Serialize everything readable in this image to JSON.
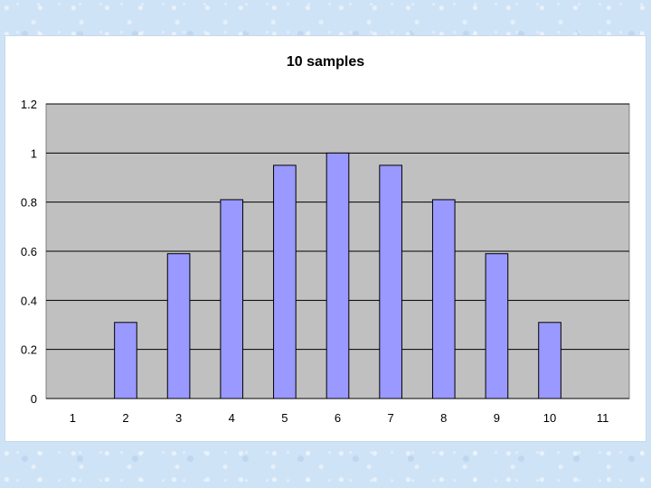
{
  "chart_data": {
    "type": "bar",
    "title": "10 samples",
    "xlabel": "",
    "ylabel": "",
    "categories": [
      "1",
      "2",
      "3",
      "4",
      "5",
      "6",
      "7",
      "8",
      "9",
      "10",
      "11"
    ],
    "values": [
      0,
      0.31,
      0.59,
      0.81,
      0.95,
      1.0,
      0.95,
      0.81,
      0.59,
      0.31,
      0
    ],
    "ylim": [
      0,
      1.2
    ],
    "yticks": [
      0,
      0.2,
      0.4,
      0.6,
      0.8,
      1,
      1.2
    ],
    "ytick_labels": [
      "0",
      "0.2",
      "0.4",
      "0.6",
      "0.8",
      "1",
      "1.2"
    ],
    "grid": true,
    "legend": "none",
    "colors": {
      "bar_fill": "#9999ff",
      "bar_stroke": "#000000",
      "plot_background": "#c0c0c0",
      "gridline": "#000000",
      "chart_background": "#ffffff",
      "page_background": "#cfe3f6"
    }
  }
}
